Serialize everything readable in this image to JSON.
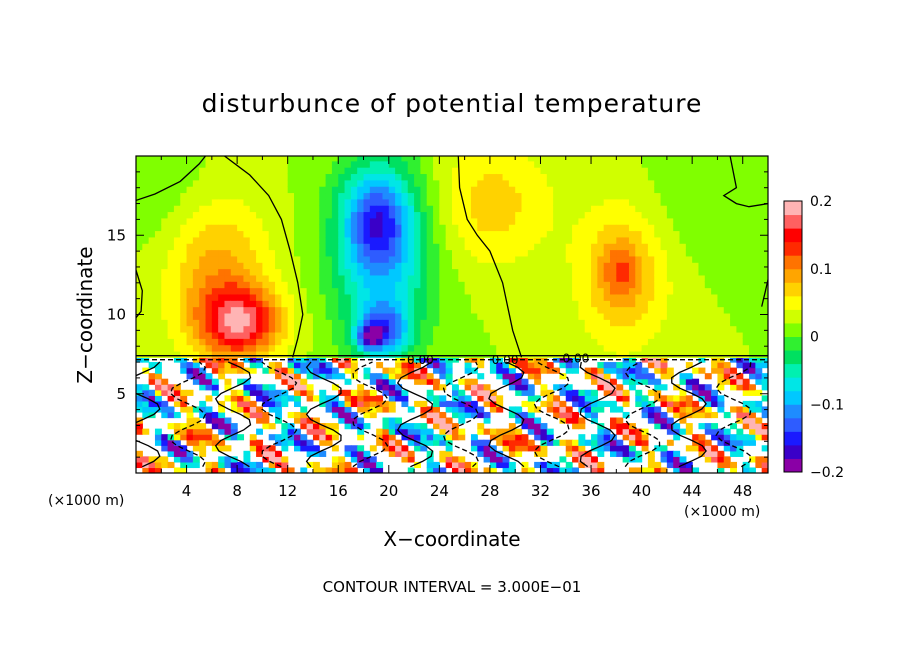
{
  "chart_data": {
    "type": "heatmap",
    "title": "disturbunce of potential temperature",
    "xlabel": "X−coordinate",
    "ylabel": "Z−coordinate",
    "x_unit_left": "(×1000 m)",
    "x_unit_right": "(×1000 m)",
    "footer": "CONTOUR INTERVAL = 3.000E−01",
    "xlim": [
      0,
      50
    ],
    "ylim": [
      0,
      20
    ],
    "x_ticks": [
      4,
      8,
      12,
      16,
      20,
      24,
      28,
      32,
      36,
      40,
      44,
      48
    ],
    "y_ticks": [
      5,
      10,
      15
    ],
    "grid": false,
    "colorbar": {
      "placement": "right",
      "range": [
        -0.2,
        0.2
      ],
      "ticks": [
        "0.2",
        "0.1",
        "0",
        "−0.1",
        "−0.2"
      ],
      "tick_values": [
        0.2,
        0.1,
        0,
        -0.1,
        -0.2
      ],
      "colors": [
        "#8a00a6",
        "#3a00c8",
        "#1a1aff",
        "#2e5cff",
        "#1e8cff",
        "#00c8ff",
        "#00e6e6",
        "#00f0b0",
        "#00e060",
        "#30f030",
        "#80ff00",
        "#d0ff00",
        "#ffff00",
        "#ffd200",
        "#ffa500",
        "#ff7300",
        "#ff2a00",
        "#ff0000",
        "#ff6060",
        "#ffb4b4"
      ]
    },
    "contour_labels": [
      {
        "text": "0.00",
        "x": 22.5,
        "z": 7.2
      },
      {
        "text": "0.00",
        "x": 29.2,
        "z": 7.2
      },
      {
        "text": "0.00",
        "x": 34.8,
        "z": 7.3
      }
    ],
    "upper_field_blobs": [
      {
        "x": 19.5,
        "z": 14.0,
        "rx": 4.0,
        "rz": 6.0,
        "v": -0.11
      },
      {
        "x": 19.0,
        "z": 16.0,
        "rx": 2.5,
        "rz": 2.8,
        "v": -0.09
      },
      {
        "x": 19.5,
        "z": 9.0,
        "rx": 2.0,
        "rz": 1.6,
        "v": -0.12
      },
      {
        "x": 18.5,
        "z": 8.6,
        "rx": 0.9,
        "rz": 0.7,
        "v": -0.1
      },
      {
        "x": 8.3,
        "z": 9.5,
        "rx": 3.2,
        "rz": 2.2,
        "v": 0.13
      },
      {
        "x": 6.5,
        "z": 12.5,
        "rx": 4.0,
        "rz": 5.0,
        "v": 0.07
      },
      {
        "x": 28.0,
        "z": 17.0,
        "rx": 5.0,
        "rz": 4.0,
        "v": 0.05
      },
      {
        "x": 38.5,
        "z": 12.5,
        "rx": 3.5,
        "rz": 4.5,
        "v": 0.07
      },
      {
        "x": 38.3,
        "z": 12.8,
        "rx": 1.3,
        "rz": 1.6,
        "v": 0.04
      },
      {
        "x": 1.5,
        "z": 18.0,
        "rx": 5.0,
        "rz": 3.5,
        "v": -0.02
      },
      {
        "x": 44.0,
        "z": 17.0,
        "rx": 5.0,
        "rz": 3.5,
        "v": -0.015
      }
    ],
    "interface_z": 7.3
  }
}
